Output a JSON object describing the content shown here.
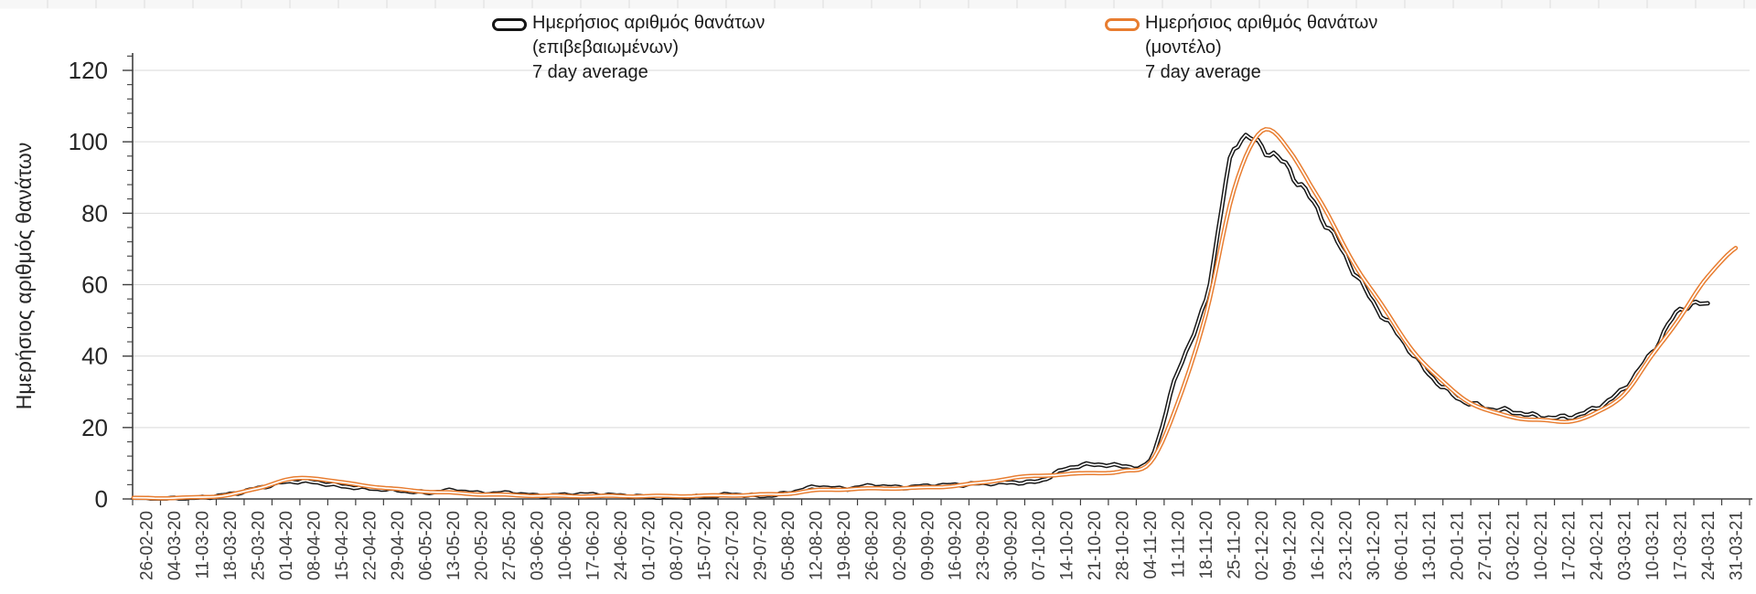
{
  "chart_data": {
    "type": "line",
    "title": "",
    "xlabel": "",
    "ylabel": "Ημερήσιος αριθμός θανάτων",
    "ylim": [
      0,
      120
    ],
    "yticks": [
      0,
      20,
      40,
      60,
      80,
      100,
      120
    ],
    "ytick_minor_step": 4,
    "grid": "horizontal",
    "legend_position": "top-center",
    "colors": {
      "grid": "#d9d9d9",
      "axis": "#3f3f3f",
      "x_tick_label": "#404040",
      "y_tick_label": "#262626",
      "background": "#ffffff"
    },
    "categories": [
      "26-02-20",
      "04-03-20",
      "11-03-20",
      "18-03-20",
      "25-03-20",
      "01-04-20",
      "08-04-20",
      "15-04-20",
      "22-04-20",
      "29-04-20",
      "06-05-20",
      "13-05-20",
      "20-05-20",
      "27-05-20",
      "03-06-20",
      "10-06-20",
      "17-06-20",
      "24-06-20",
      "01-07-20",
      "08-07-20",
      "15-07-20",
      "22-07-20",
      "29-07-20",
      "05-08-20",
      "12-08-20",
      "19-08-20",
      "26-08-20",
      "02-09-20",
      "09-09-20",
      "16-09-20",
      "23-09-20",
      "30-09-20",
      "07-10-20",
      "14-10-20",
      "21-10-20",
      "28-10-20",
      "04-11-20",
      "11-11-20",
      "18-11-20",
      "25-11-20",
      "02-12-20",
      "09-12-20",
      "16-12-20",
      "23-12-20",
      "30-12-20",
      "06-01-21",
      "13-01-21",
      "20-01-21",
      "27-01-21",
      "03-02-21",
      "10-02-21",
      "17-02-21",
      "24-02-21",
      "03-03-21",
      "10-03-21",
      "17-03-21",
      "24-03-21",
      "31-03-21"
    ],
    "series": [
      {
        "name": "Ημερήσιος αριθμός θανάτων (επιβεβαιωμένων) 7 day average",
        "legend_lines": [
          "Ημερήσιος αριθμός θανάτων",
          "(επιβεβαιωμένων)",
          "7 day average"
        ],
        "color": "#161616",
        "style": "hollow-line",
        "values": [
          0.1,
          0.15,
          0.4,
          1.3,
          3.0,
          4.8,
          4.7,
          3.6,
          3.0,
          2.5,
          1.8,
          2.3,
          1.5,
          1.6,
          0.9,
          1.1,
          1.2,
          0.9,
          0.6,
          0.5,
          0.7,
          1.2,
          0.9,
          1.6,
          3.3,
          2.8,
          3.6,
          3.2,
          3.6,
          3.9,
          4.4,
          4.6,
          5.0,
          8.5,
          9.7,
          9.3,
          11.0,
          36,
          56,
          98,
          98.5,
          92,
          81,
          68,
          55,
          45,
          35,
          28.5,
          25.5,
          24.5,
          23,
          23,
          25.5,
          31,
          41,
          53,
          54.5,
          null
        ]
      },
      {
        "name": "Ημερήσιος αριθμός θανάτων (μοντέλο) 7 day average",
        "legend_lines": [
          "Ημερήσιος αριθμός θανάτων",
          "(μοντέλο)",
          "7 day average"
        ],
        "color": "#e87d30",
        "style": "hollow-line",
        "values": [
          0.25,
          0.3,
          0.5,
          1.2,
          3.0,
          5.3,
          5.8,
          4.6,
          3.6,
          2.7,
          2.1,
          1.7,
          1.3,
          1.1,
          0.9,
          0.8,
          0.8,
          0.8,
          0.8,
          0.8,
          0.9,
          1.0,
          1.2,
          1.5,
          2.4,
          2.7,
          2.9,
          3.0,
          3.2,
          3.7,
          4.6,
          5.8,
          6.5,
          6.9,
          7.3,
          7.7,
          10.3,
          27,
          52,
          86,
          103.5,
          97,
          85,
          70,
          58,
          46,
          36.5,
          29.5,
          25,
          23,
          22,
          21.8,
          24,
          29.5,
          40,
          51,
          62,
          70.5
        ]
      }
    ]
  }
}
